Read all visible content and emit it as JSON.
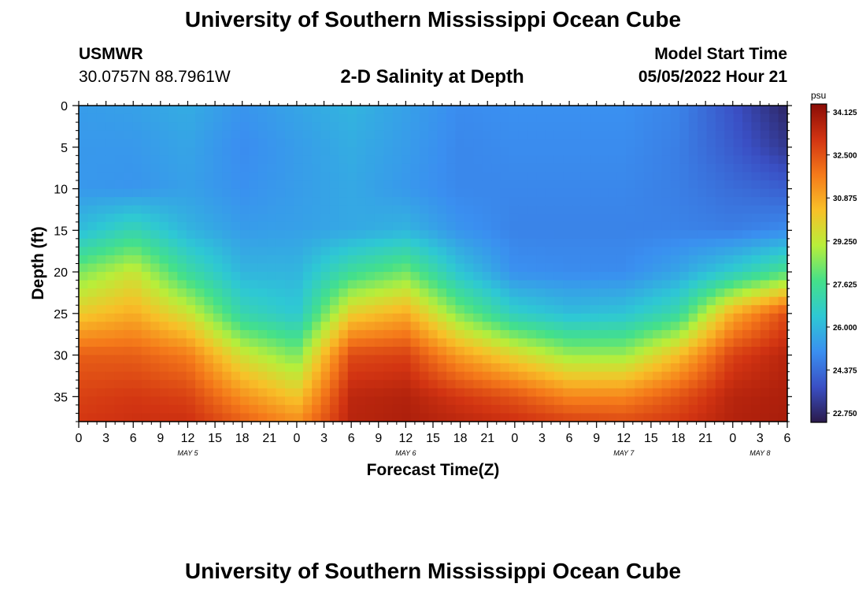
{
  "page": {
    "title_top": "University of Southern Mississippi Ocean Cube",
    "title_bottom": "University of Southern Mississippi Ocean Cube",
    "station_id": "USMWR",
    "station_coords": "30.0757N  88.7961W",
    "plot_title": "2-D Salinity at Depth",
    "model_start_label": "Model Start Time",
    "model_start_value": "05/05/2022 Hour 21"
  },
  "chart_data": {
    "type": "heatmap",
    "title": "2-D Salinity at Depth",
    "xlabel": "Forecast Time(Z)",
    "ylabel": "Depth (ft)",
    "x_range_hours": [
      0,
      78
    ],
    "y_range_ft": [
      0,
      38
    ],
    "x_ticks": [
      {
        "h": 0,
        "label": "0"
      },
      {
        "h": 3,
        "label": "3"
      },
      {
        "h": 6,
        "label": "6"
      },
      {
        "h": 9,
        "label": "9"
      },
      {
        "h": 12,
        "label": "12"
      },
      {
        "h": 15,
        "label": "15"
      },
      {
        "h": 18,
        "label": "18"
      },
      {
        "h": 21,
        "label": "21"
      },
      {
        "h": 24,
        "label": "0"
      },
      {
        "h": 27,
        "label": "3"
      },
      {
        "h": 30,
        "label": "6"
      },
      {
        "h": 33,
        "label": "9"
      },
      {
        "h": 36,
        "label": "12"
      },
      {
        "h": 39,
        "label": "15"
      },
      {
        "h": 42,
        "label": "18"
      },
      {
        "h": 45,
        "label": "21"
      },
      {
        "h": 48,
        "label": "0"
      },
      {
        "h": 51,
        "label": "3"
      },
      {
        "h": 54,
        "label": "6"
      },
      {
        "h": 57,
        "label": "9"
      },
      {
        "h": 60,
        "label": "12"
      },
      {
        "h": 63,
        "label": "15"
      },
      {
        "h": 66,
        "label": "18"
      },
      {
        "h": 69,
        "label": "21"
      },
      {
        "h": 72,
        "label": "0"
      },
      {
        "h": 75,
        "label": "3"
      },
      {
        "h": 78,
        "label": "6"
      }
    ],
    "day_labels": [
      {
        "h": 12,
        "label": "MAY 5"
      },
      {
        "h": 36,
        "label": "MAY 6"
      },
      {
        "h": 60,
        "label": "MAY 7"
      },
      {
        "h": 75,
        "label": "MAY 8"
      }
    ],
    "y_ticks": [
      0,
      5,
      10,
      15,
      20,
      25,
      30,
      35
    ],
    "colorbar": {
      "units": "psu",
      "min": 22.0,
      "max": 34.9,
      "labels": [
        "34.125",
        "32.500",
        "30.875",
        "29.250",
        "27.625",
        "26.000",
        "24.375",
        "22.750"
      ],
      "colors": [
        "#2a1a4a",
        "#3a4fc4",
        "#3a8ff0",
        "#2ec8d4",
        "#44e08a",
        "#b8ee3a",
        "#f8c028",
        "#f57a1a",
        "#d23412",
        "#8a0c06"
      ]
    },
    "depth_levels_ft": [
      0,
      5,
      10,
      15,
      20,
      25,
      30,
      35,
      38
    ],
    "time_levels_h": [
      0,
      6,
      12,
      18,
      24,
      30,
      36,
      42,
      48,
      54,
      60,
      66,
      72,
      78
    ],
    "salinity_psu": [
      [
        25.2,
        25.3,
        25.6,
        25.0,
        25.4,
        25.8,
        25.3,
        24.8,
        24.9,
        24.9,
        24.9,
        24.6,
        23.5,
        22.3
      ],
      [
        25.1,
        25.1,
        25.4,
        24.8,
        25.2,
        25.6,
        25.2,
        24.7,
        24.8,
        24.8,
        24.8,
        24.5,
        23.7,
        22.8
      ],
      [
        25.1,
        25.0,
        25.3,
        24.9,
        25.2,
        25.5,
        25.1,
        24.7,
        24.7,
        24.7,
        24.7,
        24.5,
        24.1,
        23.8
      ],
      [
        26.0,
        27.0,
        25.8,
        25.2,
        25.3,
        25.5,
        25.8,
        25.0,
        24.6,
        24.6,
        24.6,
        24.6,
        24.5,
        24.8
      ],
      [
        28.4,
        29.5,
        27.3,
        25.8,
        25.8,
        27.4,
        28.3,
        26.2,
        24.9,
        24.8,
        24.8,
        25.4,
        26.5,
        27.8
      ],
      [
        30.3,
        31.0,
        29.6,
        27.0,
        26.3,
        30.2,
        31.0,
        28.4,
        26.6,
        26.0,
        26.2,
        27.2,
        31.0,
        33.0
      ],
      [
        32.6,
        32.6,
        32.0,
        29.6,
        28.4,
        33.0,
        33.2,
        31.3,
        30.0,
        28.8,
        28.8,
        30.6,
        33.2,
        34.0
      ],
      [
        33.2,
        33.4,
        33.2,
        31.6,
        30.4,
        33.9,
        34.1,
        33.4,
        32.8,
        31.8,
        31.8,
        32.8,
        34.0,
        34.2
      ],
      [
        33.4,
        33.6,
        33.6,
        32.6,
        31.6,
        34.0,
        34.2,
        33.9,
        33.6,
        33.2,
        33.0,
        33.4,
        34.1,
        34.3
      ]
    ]
  }
}
